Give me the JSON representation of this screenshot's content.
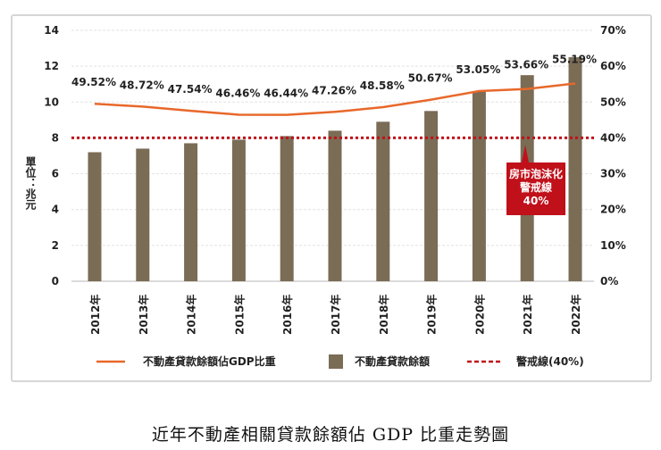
{
  "caption": "近年不動產相關貸款餘額佔 GDP 比重走勢圖",
  "chart_data": {
    "type": "bar+line",
    "categories": [
      "2012年",
      "2013年",
      "2014年",
      "2015年",
      "2016年",
      "2017年",
      "2018年",
      "2019年",
      "2020年",
      "2021年",
      "2022年"
    ],
    "ylabel": "單位：兆元",
    "ylim": [
      0,
      14
    ],
    "yticks": [
      "0",
      "2",
      "4",
      "6",
      "8",
      "10",
      "12",
      "14"
    ],
    "y2lim": [
      0,
      70
    ],
    "y2ticks": [
      "0%",
      "10%",
      "20%",
      "30%",
      "40%",
      "50%",
      "60%",
      "70%"
    ],
    "grid": true,
    "series": [
      {
        "name": "不動產貸款餘額",
        "type": "bar",
        "axis": "left",
        "color": "#7a6c55",
        "values": [
          7.2,
          7.4,
          7.7,
          7.9,
          8.1,
          8.4,
          8.9,
          9.5,
          10.6,
          11.5,
          12.5
        ]
      },
      {
        "name": "不動產貸款餘額佔GDP比重",
        "type": "line",
        "axis": "right",
        "color": "#e8682a",
        "values": [
          49.52,
          48.72,
          47.54,
          46.46,
          46.44,
          47.26,
          48.58,
          50.67,
          53.05,
          53.66,
          55.19
        ],
        "labels": [
          "49.52%",
          "48.72%",
          "47.54%",
          "46.46%",
          "46.44%",
          "47.26%",
          "48.58%",
          "50.67%",
          "53.05%",
          "53.66%",
          "55.19%"
        ]
      },
      {
        "name": "警戒線(40%)",
        "type": "hline",
        "axis": "right",
        "color": "#c0101a",
        "value": 40
      }
    ],
    "annotation": {
      "lines": [
        "房市泡沫化",
        "警戒線",
        "40%"
      ],
      "color": "#c0101a"
    },
    "legend_position": "bottom"
  }
}
